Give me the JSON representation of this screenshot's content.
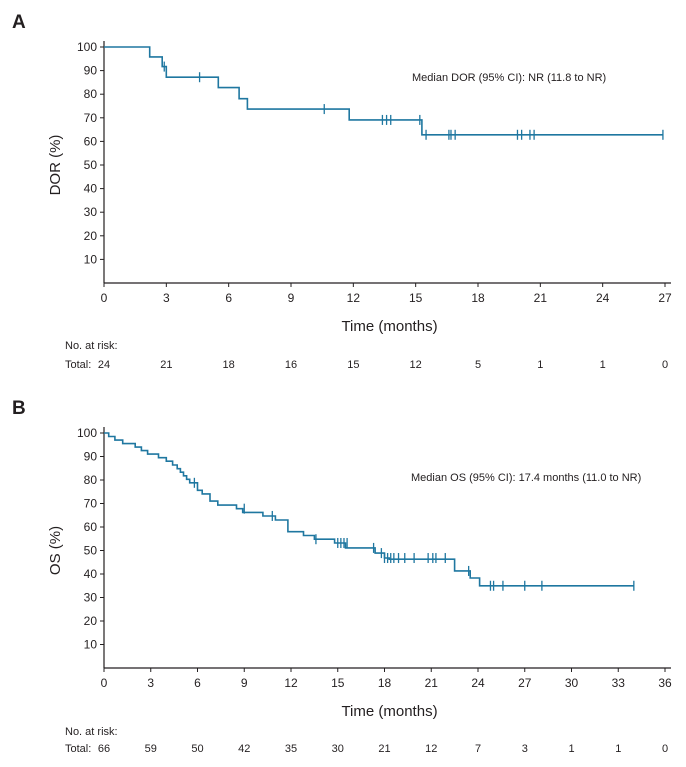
{
  "colors": {
    "curve": "#1f77a0",
    "axis": "#231f20"
  },
  "chart_data": [
    {
      "panel": "A",
      "type": "line",
      "step": true,
      "xlabel": "Time (months)",
      "ylabel": "DOR (%)",
      "xlim": [
        0,
        27
      ],
      "ylim": [
        0,
        100
      ],
      "xticks": [
        0,
        3,
        6,
        9,
        12,
        15,
        18,
        21,
        24,
        27
      ],
      "yticks": [
        10,
        20,
        30,
        40,
        50,
        60,
        70,
        80,
        90,
        100
      ],
      "annotation": "Median DOR (95% CI): NR (11.8 to NR)",
      "series": [
        {
          "name": "DOR",
          "x": [
            0,
            2.2,
            2.2,
            2.8,
            2.8,
            3.0,
            3.0,
            5.5,
            5.5,
            6.5,
            6.5,
            6.9,
            6.9,
            11.8,
            11.8,
            15.3,
            15.3,
            26.9
          ],
          "y": [
            100,
            100,
            95.8,
            95.8,
            91.7,
            91.7,
            87.2,
            87.2,
            82.8,
            82.8,
            78.1,
            78.1,
            73.7,
            73.7,
            69.1,
            69.1,
            62.8,
            62.8
          ]
        }
      ],
      "censor": {
        "x": [
          2.9,
          4.6,
          10.6,
          13.4,
          13.6,
          13.8,
          15.2,
          15.5,
          16.6,
          16.7,
          16.9,
          19.9,
          20.1,
          20.5,
          20.7,
          26.9
        ],
        "y": [
          91.7,
          87.2,
          73.7,
          69.1,
          69.1,
          69.1,
          69.1,
          62.8,
          62.8,
          62.8,
          62.8,
          62.8,
          62.8,
          62.8,
          62.8,
          62.8
        ]
      },
      "risk_table": {
        "header": "No. at risk:",
        "row_label": "Total:",
        "times": [
          0,
          3,
          6,
          9,
          12,
          15,
          18,
          21,
          24,
          27
        ],
        "values": [
          "24",
          "21",
          "18",
          "16",
          "15",
          "12",
          "5",
          "1",
          "1",
          "0"
        ]
      }
    },
    {
      "panel": "B",
      "type": "line",
      "step": true,
      "xlabel": "Time (months)",
      "ylabel": "OS (%)",
      "xlim": [
        0,
        36
      ],
      "ylim": [
        0,
        100
      ],
      "xticks": [
        0,
        3,
        6,
        9,
        12,
        15,
        18,
        21,
        24,
        27,
        30,
        33,
        36
      ],
      "yticks": [
        10,
        20,
        30,
        40,
        50,
        60,
        70,
        80,
        90,
        100
      ],
      "annotation": "Median OS (95% CI): 17.4 months  (11.0 to NR)",
      "series": [
        {
          "name": "OS",
          "x": [
            0,
            0.3,
            0.3,
            0.7,
            0.7,
            1.2,
            1.2,
            2.0,
            2.0,
            2.4,
            2.4,
            2.8,
            2.8,
            3.5,
            3.5,
            4.0,
            4.0,
            4.4,
            4.4,
            4.7,
            4.7,
            4.9,
            4.9,
            5.1,
            5.1,
            5.3,
            5.3,
            5.5,
            5.5,
            6.0,
            6.0,
            6.3,
            6.3,
            6.8,
            6.8,
            7.3,
            7.3,
            8.5,
            8.5,
            8.9,
            8.9,
            10.2,
            10.2,
            11.0,
            11.0,
            11.8,
            11.8,
            12.8,
            12.8,
            13.5,
            13.5,
            14.8,
            14.8,
            15.5,
            15.5,
            17.4,
            17.4,
            18.0,
            18.0,
            18.3,
            18.3,
            22.5,
            22.5,
            23.5,
            23.5,
            24.1,
            24.1,
            34.0
          ],
          "y": [
            100,
            100,
            98.5,
            98.5,
            97.0,
            97.0,
            95.5,
            95.5,
            94.0,
            94.0,
            92.5,
            92.5,
            91.0,
            91.0,
            89.5,
            89.5,
            88.0,
            88.0,
            86.4,
            86.4,
            84.8,
            84.8,
            83.3,
            83.3,
            81.8,
            81.8,
            80.3,
            80.3,
            78.8,
            78.8,
            75.6,
            75.6,
            74.1,
            74.1,
            71.0,
            71.0,
            69.3,
            69.3,
            67.8,
            67.8,
            66.2,
            66.2,
            64.7,
            64.7,
            63.0,
            63.0,
            58.0,
            58.0,
            56.4,
            56.4,
            54.8,
            54.8,
            53.2,
            53.2,
            51.1,
            51.1,
            48.9,
            48.9,
            46.8,
            46.8,
            46.3,
            46.3,
            41.3,
            41.3,
            38.3,
            38.3,
            35.0,
            35.0
          ]
        }
      ],
      "censor": {
        "x": [
          5.8,
          9.0,
          10.8,
          13.6,
          15.0,
          15.2,
          15.4,
          15.6,
          17.3,
          17.8,
          18.0,
          18.2,
          18.4,
          18.6,
          18.9,
          19.3,
          19.9,
          20.8,
          21.1,
          21.3,
          21.9,
          23.4,
          24.8,
          25.0,
          25.6,
          27.0,
          28.1,
          34.0
        ],
        "y": [
          78.8,
          67.8,
          64.7,
          54.8,
          53.2,
          53.2,
          53.2,
          53.2,
          51.1,
          48.9,
          46.8,
          46.8,
          46.8,
          46.8,
          46.8,
          46.8,
          46.8,
          46.8,
          46.8,
          46.8,
          46.8,
          41.3,
          35.0,
          35.0,
          35.0,
          35.0,
          35.0,
          35.0
        ]
      },
      "risk_table": {
        "header": "No. at risk:",
        "row_label": "Total:",
        "times": [
          0,
          3,
          6,
          9,
          12,
          15,
          18,
          21,
          24,
          27,
          30,
          33,
          36
        ],
        "values": [
          "66",
          "59",
          "50",
          "42",
          "35",
          "30",
          "21",
          "12",
          "7",
          "3",
          "1",
          "1",
          "0"
        ]
      }
    }
  ]
}
